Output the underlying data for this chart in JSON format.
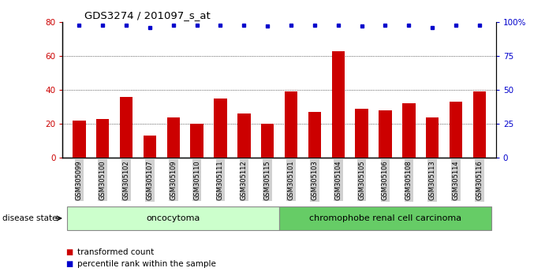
{
  "title": "GDS3274 / 201097_s_at",
  "samples": [
    "GSM305099",
    "GSM305100",
    "GSM305102",
    "GSM305107",
    "GSM305109",
    "GSM305110",
    "GSM305111",
    "GSM305112",
    "GSM305115",
    "GSM305101",
    "GSM305103",
    "GSM305104",
    "GSM305105",
    "GSM305106",
    "GSM305108",
    "GSM305113",
    "GSM305114",
    "GSM305116"
  ],
  "transformed_counts": [
    22,
    23,
    36,
    13,
    24,
    20,
    35,
    26,
    20,
    39,
    27,
    63,
    29,
    28,
    32,
    24,
    33,
    39
  ],
  "percentile_ranks": [
    98,
    98,
    98,
    96,
    98,
    98,
    98,
    98,
    97,
    98,
    98,
    98,
    97,
    98,
    98,
    96,
    98,
    98
  ],
  "bar_color": "#cc0000",
  "dot_color": "#0000cc",
  "ylim_left": [
    0,
    80
  ],
  "ylim_right": [
    0,
    100
  ],
  "yticks_left": [
    0,
    20,
    40,
    60,
    80
  ],
  "yticks_right": [
    0,
    25,
    50,
    75,
    100
  ],
  "ytick_labels_right": [
    "0",
    "25",
    "50",
    "75",
    "100%"
  ],
  "grid_values": [
    20,
    40,
    60
  ],
  "oncocytoma_count": 9,
  "oncocytoma_label": "oncocytoma",
  "oncocytoma_color": "#ccffcc",
  "carcinoma_label": "chromophobe renal cell carcinoma",
  "carcinoma_color": "#66cc66",
  "disease_state_label": "disease state",
  "legend_label1": "transformed count",
  "legend_label2": "percentile rank within the sample",
  "background_color": "#ffffff",
  "xtick_bg_color": "#d0d0d0"
}
